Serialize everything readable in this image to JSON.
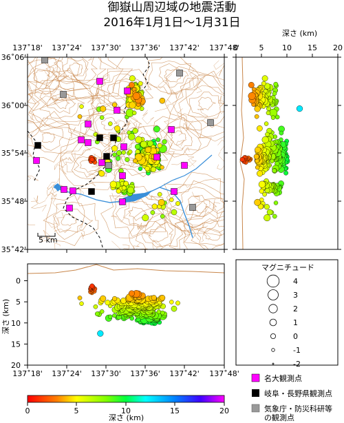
{
  "title_line1": "御嶽山周辺域の地震活動",
  "title_line2": "2016年1月1日〜1月31日",
  "map": {
    "lon_ticks": [
      "137˚18'",
      "137˚24'",
      "137˚30'",
      "137˚36'",
      "137˚42'",
      "137˚48'"
    ],
    "lat_ticks": [
      "36˚06'",
      "36˚00'",
      "35˚54'",
      "35˚48'",
      "35˚42'"
    ],
    "scale_label": "5 km"
  },
  "depth_panel_right": {
    "axis_label": "深さ (km)",
    "ticks": [
      "0",
      "5",
      "10",
      "15",
      "20"
    ]
  },
  "depth_panel_bottom": {
    "axis_label": "深さ (km)",
    "ticks": [
      "0",
      "5",
      "10",
      "15",
      "20"
    ],
    "lon_ticks": [
      "137˚18'",
      "137˚24'",
      "137˚30'",
      "137˚36'",
      "137˚42'",
      "137˚48'"
    ]
  },
  "magnitude_legend": {
    "title": "マグニチュード",
    "items": [
      {
        "label": "4",
        "mag": 4
      },
      {
        "label": "3",
        "mag": 3
      },
      {
        "label": "2",
        "mag": 2
      },
      {
        "label": "1",
        "mag": 1
      },
      {
        "label": "0",
        "mag": 0
      },
      {
        "label": "-1",
        "mag": -1
      },
      {
        "label": "-2",
        "mag": -2
      }
    ]
  },
  "station_legend": [
    {
      "label": "名大観測点",
      "color": "#ff00ff"
    },
    {
      "label": "岐阜・長野県観測点",
      "color": "#000000"
    },
    {
      "label": "気象庁・防災科研等",
      "label2": "の観測点",
      "color": "#999999"
    }
  ],
  "colorbar": {
    "label": "深さ (km)",
    "ticks": [
      "0",
      "5",
      "10",
      "15",
      "20"
    ]
  },
  "colors": {
    "river": "#3a8fd9",
    "contour": "#c8864a",
    "boundary": "#000000"
  }
}
